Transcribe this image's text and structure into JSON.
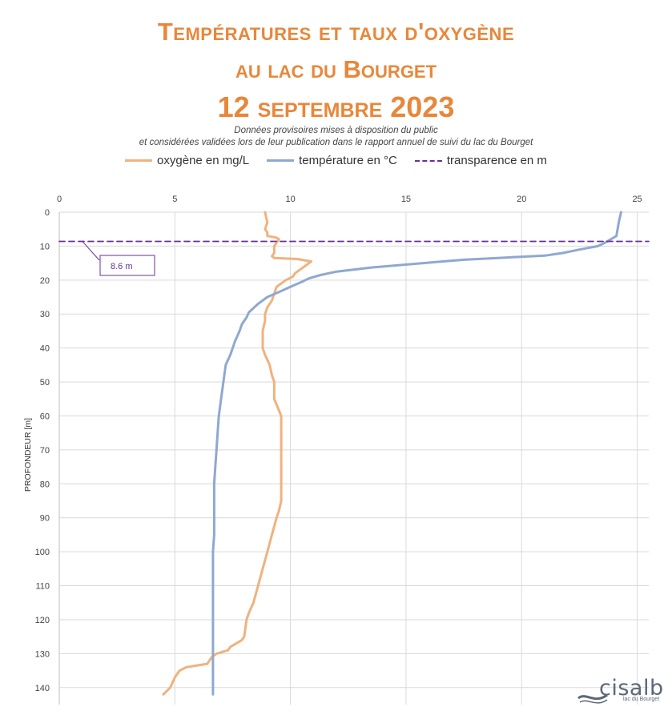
{
  "title_line1": "Températures et taux d'oxygène",
  "title_line2": "au lac du Bourget",
  "title_line3": "12 septembre 2023",
  "subtitle_line1": "Données provisoires mises à disposition du public",
  "subtitle_line2": "et considérées validées lors de leur publication dans le rapport annuel de suivi du lac du Bourget",
  "logo": {
    "name": "cisalb",
    "tagline": "lac du Bourget"
  },
  "colors": {
    "oxygen": "#f0b27e",
    "temperature": "#8fa8d0",
    "transparency": "#6a2f9a",
    "title": "#e8873a"
  },
  "chart_data": {
    "type": "line",
    "title": "Températures et taux d'oxygène au lac du Bourget",
    "ylabel": "PROFONDEUR [m]",
    "xlabel": "",
    "xlim": [
      0,
      25.5
    ],
    "ylim": [
      0,
      145
    ],
    "y_reversed": true,
    "x_axis_position": "top",
    "x_ticks": [
      0,
      5,
      10,
      15,
      20,
      25
    ],
    "y_ticks": [
      0,
      10,
      20,
      30,
      40,
      50,
      60,
      70,
      80,
      90,
      100,
      110,
      120,
      130,
      140
    ],
    "grid": true,
    "legend_position": "top",
    "series": [
      {
        "name": "oxygène en mg/L",
        "x": [
          8.9,
          9.0,
          8.9,
          9.0,
          9.0,
          9.4,
          9.5,
          9.3,
          9.3,
          9.2,
          9.3,
          10.3,
          10.9,
          10.6,
          10.4,
          10.2,
          10.1,
          9.8,
          9.4,
          9.3,
          9.2,
          9.0,
          8.9,
          8.9,
          8.8,
          8.8,
          8.8,
          8.9,
          9.1,
          9.2,
          9.3,
          9.3,
          9.6,
          9.6,
          9.6,
          9.6,
          9.6,
          9.6,
          9.5,
          9.4,
          9.2,
          9.0,
          8.8,
          8.6,
          8.4,
          8.2,
          8.1,
          8.0,
          7.9,
          7.4,
          7.3,
          6.8,
          6.6,
          6.4,
          5.5,
          5.2,
          5.0,
          4.8,
          4.5
        ],
        "y": [
          0,
          3,
          5,
          6,
          7,
          7.5,
          8,
          10,
          12,
          13,
          13.5,
          13.8,
          14.5,
          16,
          17,
          18,
          19,
          20,
          22,
          24,
          26,
          28,
          30,
          32,
          35,
          38,
          40,
          42,
          45,
          48,
          50,
          55,
          60,
          65,
          70,
          75,
          80,
          85,
          88,
          90,
          95,
          100,
          105,
          110,
          115,
          118,
          120,
          125,
          126,
          128,
          129,
          130,
          131,
          133,
          134,
          135,
          137,
          140,
          142
        ]
      },
      {
        "name": "température en °C",
        "x": [
          24.3,
          24.2,
          24.1,
          23.6,
          23.3,
          22.5,
          21.8,
          21.0,
          19.5,
          17.5,
          16.3,
          13.5,
          12.0,
          11.3,
          10.8,
          10.5,
          10.0,
          9.5,
          9.0,
          8.6,
          8.2,
          8.1,
          7.9,
          7.8,
          7.6,
          7.4,
          7.2,
          7.1,
          7.0,
          6.9,
          6.85,
          6.8,
          6.75,
          6.7,
          6.7,
          6.7,
          6.7,
          6.65,
          6.65,
          6.65,
          6.65,
          6.65,
          6.65,
          6.65,
          6.65
        ],
        "y": [
          0,
          3,
          7,
          9,
          10,
          11,
          12,
          12.8,
          13.3,
          14,
          14.7,
          16.3,
          17.5,
          18.5,
          19.5,
          20.5,
          22,
          23.5,
          25,
          27,
          29.5,
          31,
          33,
          35,
          38,
          42,
          45,
          50,
          55,
          60,
          65,
          70,
          75,
          80,
          85,
          90,
          95,
          100,
          105,
          110,
          115,
          120,
          130,
          135,
          142
        ]
      },
      {
        "name": "transparence en m",
        "x": [
          0,
          25.5
        ],
        "y": [
          8.6,
          8.6
        ]
      }
    ],
    "annotations": [
      {
        "text": "8.6 m",
        "x": 1,
        "y": 8.6
      }
    ]
  }
}
